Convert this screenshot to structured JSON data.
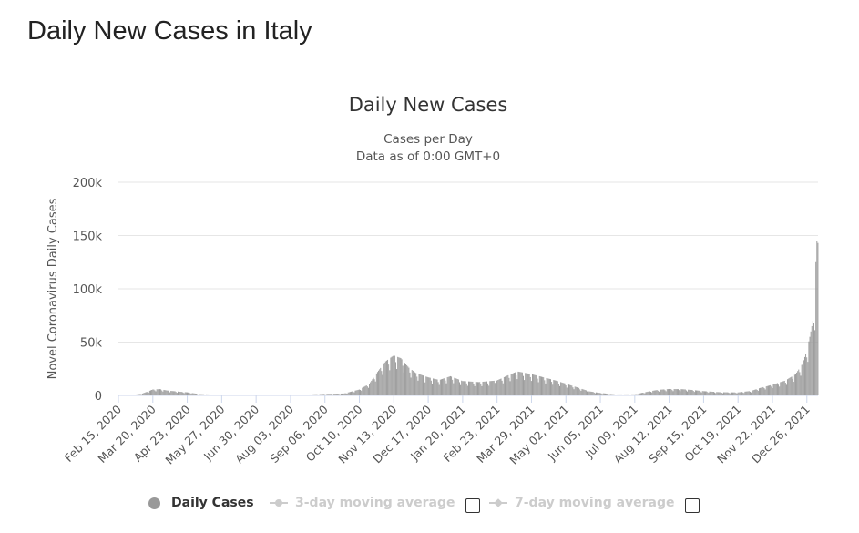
{
  "page": {
    "title": "Daily New Cases in Italy"
  },
  "chart_data": {
    "type": "bar",
    "title": "Daily New Cases",
    "subtitle_lines": [
      "Cases per Day",
      "Data as of 0:00 GMT+0"
    ],
    "ylabel": "Novel Coronavirus Daily Cases",
    "xlabel": "",
    "ylim": [
      0,
      200000
    ],
    "yticks": [
      0,
      50000,
      100000,
      150000,
      200000
    ],
    "ytick_labels": [
      "0",
      "50k",
      "100k",
      "150k",
      "200k"
    ],
    "xtick_labels": [
      "Feb 15, 2020",
      "Mar 20, 2020",
      "Apr 23, 2020",
      "May 27, 2020",
      "Jun 30, 2020",
      "Aug 03, 2020",
      "Sep 06, 2020",
      "Oct 10, 2020",
      "Nov 13, 2020",
      "Dec 17, 2020",
      "Jan 20, 2021",
      "Feb 23, 2021",
      "Mar 29, 2021",
      "May 02, 2021",
      "Jun 05, 2021",
      "Jul 09, 2021",
      "Aug 12, 2021",
      "Sep 15, 2021",
      "Oct 19, 2021",
      "Nov 22, 2021",
      "Dec 26, 2021"
    ],
    "x_range": [
      "Feb 15, 2020",
      "Jan 06, 2022"
    ],
    "grid": true,
    "bar_color": "#999999",
    "series": [
      {
        "name": "Daily Cases",
        "anchors": [
          [
            "Feb 15, 2020",
            0
          ],
          [
            "Feb 28, 2020",
            200
          ],
          [
            "Mar 10, 2020",
            1800
          ],
          [
            "Mar 20, 2020",
            5500
          ],
          [
            "Mar 27, 2020",
            5900
          ],
          [
            "Apr 03, 2020",
            4600
          ],
          [
            "Apr 15, 2020",
            3500
          ],
          [
            "Apr 23, 2020",
            2900
          ],
          [
            "May 05, 2020",
            1200
          ],
          [
            "May 27, 2020",
            500
          ],
          [
            "Jun 30, 2020",
            200
          ],
          [
            "Aug 03, 2020",
            300
          ],
          [
            "Aug 20, 2020",
            800
          ],
          [
            "Sep 06, 2020",
            1400
          ],
          [
            "Sep 25, 2020",
            1800
          ],
          [
            "Oct 10, 2020",
            5500
          ],
          [
            "Oct 20, 2020",
            11000
          ],
          [
            "Oct 28, 2020",
            22000
          ],
          [
            "Nov 05, 2020",
            32000
          ],
          [
            "Nov 13, 2020",
            37500
          ],
          [
            "Nov 20, 2020",
            35000
          ],
          [
            "Nov 28, 2020",
            26000
          ],
          [
            "Dec 05, 2020",
            21000
          ],
          [
            "Dec 17, 2020",
            17000
          ],
          [
            "Dec 28, 2020",
            14500
          ],
          [
            "Jan 08, 2021",
            18000
          ],
          [
            "Jan 20, 2021",
            13500
          ],
          [
            "Feb 05, 2021",
            12500
          ],
          [
            "Feb 23, 2021",
            14000
          ],
          [
            "Mar 05, 2021",
            18500
          ],
          [
            "Mar 15, 2021",
            22500
          ],
          [
            "Mar 29, 2021",
            20000
          ],
          [
            "Apr 10, 2021",
            17000
          ],
          [
            "Apr 22, 2021",
            14000
          ],
          [
            "May 02, 2021",
            11000
          ],
          [
            "May 15, 2021",
            7000
          ],
          [
            "May 25, 2021",
            3800
          ],
          [
            "Jun 05, 2021",
            2300
          ],
          [
            "Jun 20, 2021",
            900
          ],
          [
            "Jul 09, 2021",
            1000
          ],
          [
            "Jul 22, 2021",
            3500
          ],
          [
            "Aug 01, 2021",
            5200
          ],
          [
            "Aug 12, 2021",
            6000
          ],
          [
            "Aug 25, 2021",
            5800
          ],
          [
            "Sep 05, 2021",
            5000
          ],
          [
            "Sep 15, 2021",
            4000
          ],
          [
            "Oct 01, 2021",
            3000
          ],
          [
            "Oct 19, 2021",
            2800
          ],
          [
            "Nov 01, 2021",
            4200
          ],
          [
            "Nov 10, 2021",
            7000
          ],
          [
            "Nov 22, 2021",
            10000
          ],
          [
            "Dec 05, 2021",
            14000
          ],
          [
            "Dec 15, 2021",
            20000
          ],
          [
            "Dec 22, 2021",
            30000
          ],
          [
            "Dec 26, 2021",
            42000
          ],
          [
            "Dec 29, 2021",
            55000
          ],
          [
            "Jan 01, 2022",
            70000
          ],
          [
            "Jan 03, 2022",
            90000
          ],
          [
            "Jan 04, 2022",
            125000
          ],
          [
            "Jan 05, 2022",
            145000
          ],
          [
            "Jan 06, 2022",
            143000
          ]
        ]
      }
    ],
    "legend": [
      {
        "label": "Daily Cases",
        "active": true
      },
      {
        "label": "3-day moving average",
        "active": false
      },
      {
        "label": "7-day moving average",
        "active": false
      }
    ]
  }
}
